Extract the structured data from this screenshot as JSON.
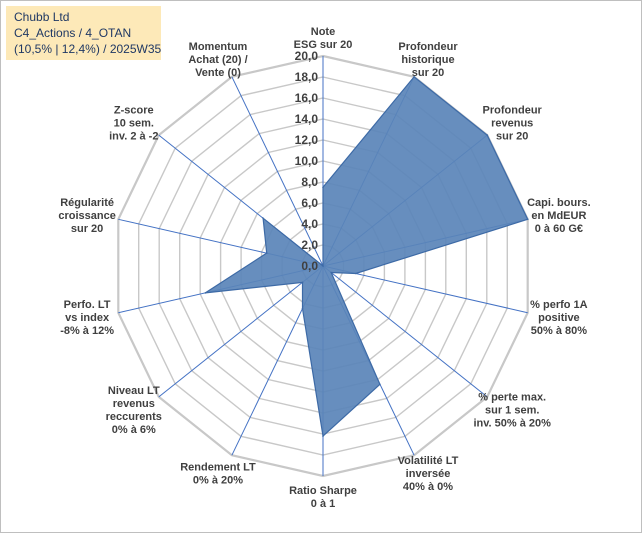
{
  "header": {
    "lines": [
      "Chubb Ltd",
      "C4_Actions / 4_OTAN",
      "(10,5% | 12,4%) / 2025W35"
    ]
  },
  "colors": {
    "fill": "#5a84b8",
    "stroke": "#3d6aa6",
    "ring": "#c8c8c8",
    "spoke": "#4472c4",
    "header_bg": "#fde9b8"
  },
  "chart_data": {
    "type": "radar",
    "rlim": [
      0,
      20
    ],
    "tick_step": 2,
    "tick_labels": [
      "0,0",
      "2,0",
      "4,0",
      "6,0",
      "8,0",
      "10,0",
      "12,0",
      "14,0",
      "16,0",
      "18,0",
      "20,0"
    ],
    "grid": true,
    "axes": [
      {
        "label": [
          "Note",
          "ESG sur 20"
        ],
        "value": 7.5
      },
      {
        "label": [
          "Profondeur",
          "historique",
          "sur 20"
        ],
        "value": 20
      },
      {
        "label": [
          "Profondeur",
          "revenus",
          "sur 20"
        ],
        "value": 20
      },
      {
        "label": [
          "Capi. bours.",
          "en MdEUR",
          "0 à 60 G€"
        ],
        "value": 20
      },
      {
        "label": [
          "% perfo 1A",
          "positive",
          "50% à 80%"
        ],
        "value": 3.2
      },
      {
        "label": [
          "% perte max.",
          "sur 1 sem.",
          "inv. 50% à 20%"
        ],
        "value": 1
      },
      {
        "label": [
          "Volatilité LT",
          "inversée",
          "40% à 0%"
        ],
        "value": 12.5
      },
      {
        "label": [
          "Ratio Sharpe",
          "0 à 1"
        ],
        "value": 16.2
      },
      {
        "label": [
          "Rendement LT",
          "0% à 20%"
        ],
        "value": 4.5
      },
      {
        "label": [
          "Niveau LT",
          "revenus",
          "reccurents",
          "0% à 6%"
        ],
        "value": 2.5
      },
      {
        "label": [
          "Perfo. LT",
          "vs index",
          "-8% à 12%"
        ],
        "value": 11.5
      },
      {
        "label": [
          "Régularité",
          "croissance",
          "sur 20"
        ],
        "value": 5.5
      },
      {
        "label": [
          "Z-score",
          "10 sem.",
          "inv. 2 à -2"
        ],
        "value": 7.3
      },
      {
        "label": [
          "Momentum",
          "Achat (20) /",
          "Vente (0)"
        ],
        "value": 0
      }
    ]
  }
}
